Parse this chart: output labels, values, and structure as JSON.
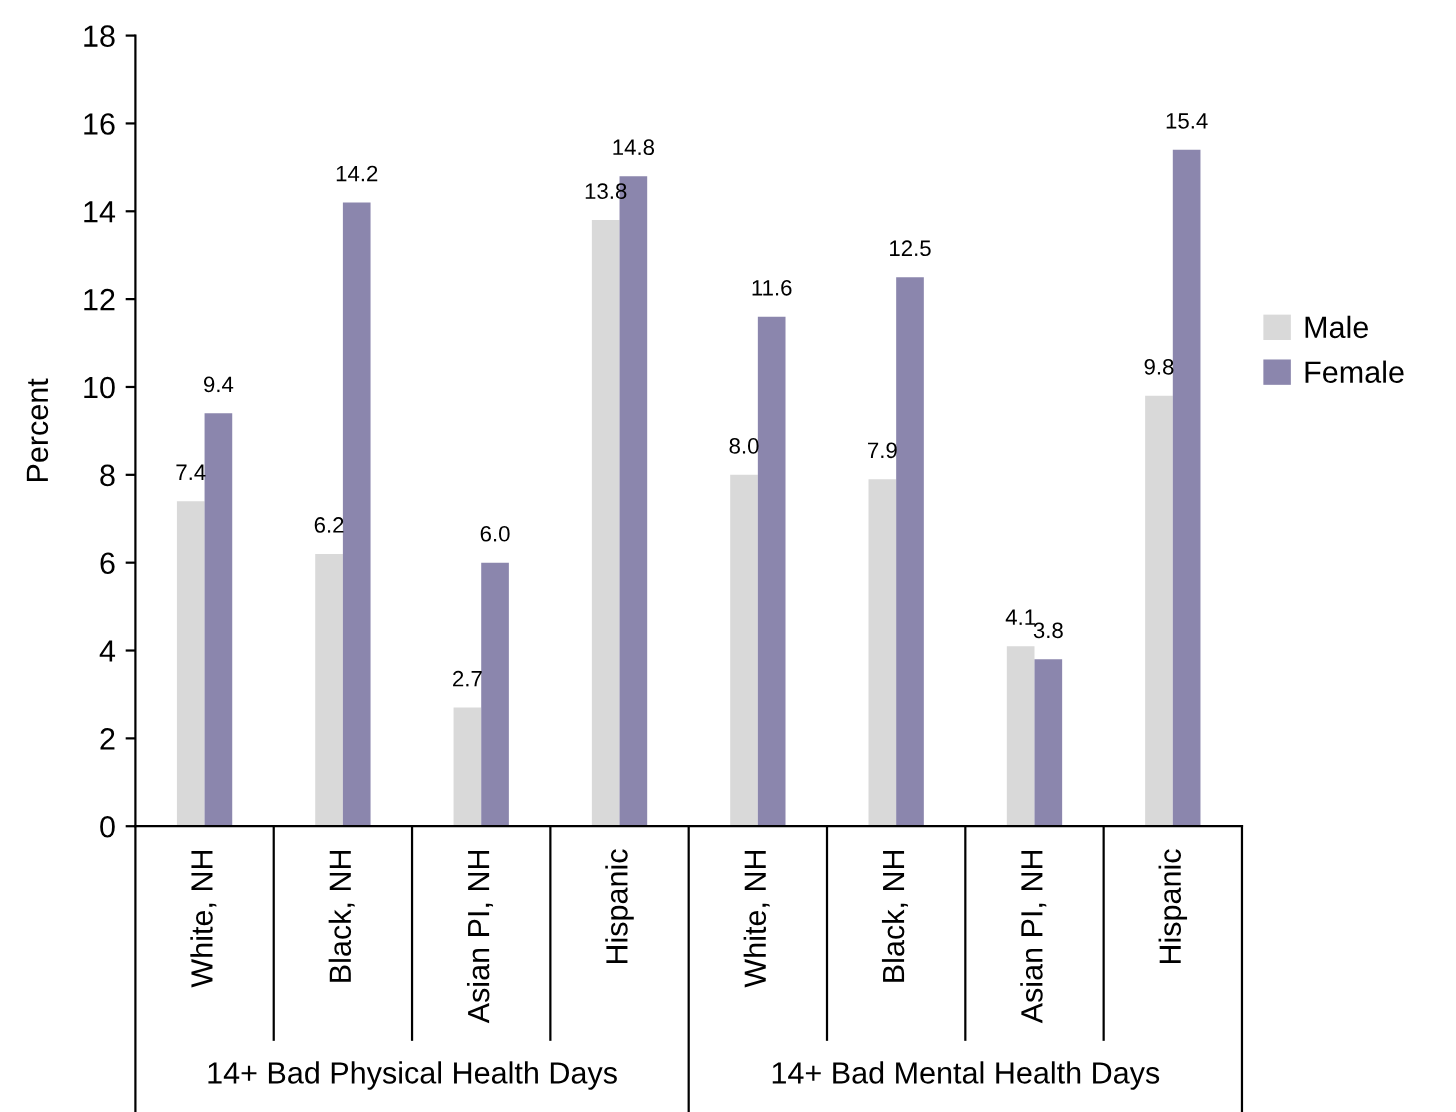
{
  "chart_data": {
    "type": "bar",
    "ylabel": "Percent",
    "categories": [
      "White, NH",
      "Black, NH",
      "Asian PI, NH",
      "Hispanic",
      "White, NH",
      "Black, NH",
      "Asian PI, NH",
      "Hispanic"
    ],
    "series": [
      {
        "name": "Male",
        "color": "#d9d9d9",
        "values": [
          7.4,
          6.2,
          2.7,
          13.8,
          8.0,
          7.9,
          4.1,
          9.8
        ],
        "value_labels": [
          "7.4",
          "6.2",
          "2.7",
          "13.8",
          "8.0",
          "7.9",
          "4.1",
          "9.8"
        ]
      },
      {
        "name": "Female",
        "color": "#8b86ad",
        "values": [
          9.4,
          14.2,
          6.0,
          14.8,
          11.6,
          12.5,
          3.8,
          15.4
        ],
        "value_labels": [
          "9.4",
          "14.2",
          "6.0",
          "14.8",
          "11.6",
          "12.5",
          "3.8",
          "15.4"
        ]
      }
    ],
    "annotations": [
      "14+ Bad Physical Health Days",
      "14+ Bad Mental Health Days"
    ],
    "ylim": [
      0,
      18
    ],
    "yticks": [
      0,
      2,
      4,
      6,
      8,
      10,
      12,
      14,
      16,
      18
    ],
    "legend": "right",
    "grid": false
  }
}
